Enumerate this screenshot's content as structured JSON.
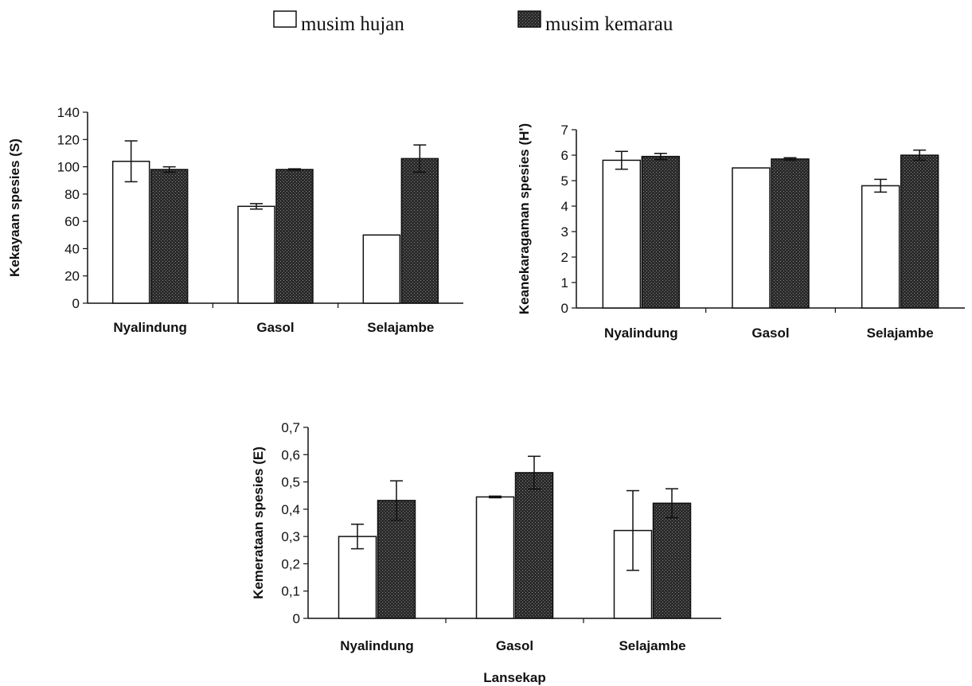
{
  "legend": {
    "items": [
      {
        "label": "musim hujan",
        "color": "#ffffff"
      },
      {
        "label": "musim kemarau",
        "color": "#2b2b2b"
      }
    ]
  },
  "colors": {
    "series_hujan": "#ffffff",
    "series_kemarau": "#2b2b2b",
    "axis": "#111111"
  },
  "chart_data": [
    {
      "type": "bar",
      "categories": [
        "Nyalindung",
        "Gasol",
        "Selajambe"
      ],
      "ylabel": "Kekayaan spesies (S)",
      "xlabel": "",
      "ylim": [
        0,
        140
      ],
      "yticks": [
        "0",
        "20",
        "40",
        "60",
        "80",
        "100",
        "120",
        "140"
      ],
      "grid": false,
      "series": [
        {
          "name": "musim hujan",
          "values": [
            104,
            71,
            50
          ],
          "errors": [
            15,
            2,
            0
          ]
        },
        {
          "name": "musim kemarau",
          "values": [
            98,
            98,
            106
          ],
          "errors": [
            2,
            0.5,
            10
          ]
        }
      ]
    },
    {
      "type": "bar",
      "categories": [
        "Nyalindung",
        "Gasol",
        "Selajambe"
      ],
      "ylabel": "Keanekaragaman spesies (H')",
      "xlabel": "",
      "ylim": [
        0,
        7
      ],
      "yticks": [
        "0",
        "1",
        "2",
        "3",
        "4",
        "5",
        "6",
        "7"
      ],
      "grid": false,
      "series": [
        {
          "name": "musim hujan",
          "values": [
            5.8,
            5.5,
            4.8
          ],
          "errors": [
            0.35,
            0,
            0.25
          ]
        },
        {
          "name": "musim kemarau",
          "values": [
            5.95,
            5.85,
            6.0
          ],
          "errors": [
            0.12,
            0.05,
            0.2
          ]
        }
      ]
    },
    {
      "type": "bar",
      "categories": [
        "Nyalindung",
        "Gasol",
        "Selajambe"
      ],
      "ylabel": "Kemerataan spesies (E)",
      "xlabel": "Lansekap",
      "ylim": [
        0,
        0.7
      ],
      "yticks": [
        "0",
        "0,1",
        "0,2",
        "0,3",
        "0,4",
        "0,5",
        "0,6",
        "0,7"
      ],
      "grid": false,
      "series": [
        {
          "name": "musim hujan",
          "values": [
            0.3,
            0.445,
            0.322
          ],
          "errors": [
            0.045,
            0.003,
            0.146
          ]
        },
        {
          "name": "musim kemarau",
          "values": [
            0.432,
            0.534,
            0.422
          ],
          "errors": [
            0.072,
            0.06,
            0.053
          ]
        }
      ]
    }
  ]
}
